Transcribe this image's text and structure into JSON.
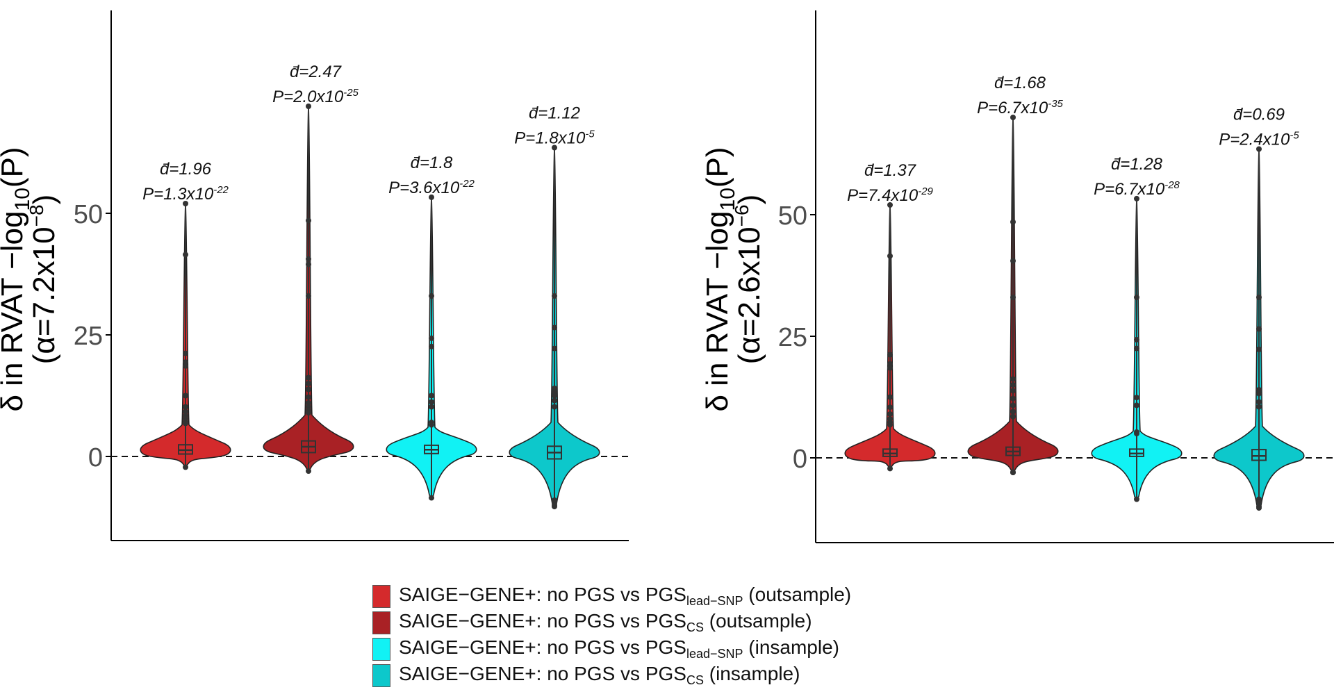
{
  "chart_data": [
    {
      "type": "violin",
      "ylabel_line1": "δ in RVAT −log",
      "ylabel_sub": "10",
      "ylabel_line1_end": "(P)",
      "ylabel_line2_open": "(α=7.2x10",
      "ylabel_line2_sup": "−8",
      "ylabel_line2_close": ")",
      "ylim": [
        -12,
        75
      ],
      "yticks": [
        0,
        25,
        50
      ],
      "reference_line": 0,
      "groups": [
        {
          "series": 0,
          "median": 1.3,
          "q1": 0.5,
          "q3": 2.4,
          "min": -2.2,
          "max": 52,
          "bulk_top": 6.5,
          "outliers": [
            41.5,
            21.2,
            19.4,
            18.6,
            12.5,
            10.2,
            9.2,
            8.4,
            7.8,
            7.2,
            6.8
          ],
          "annotation_d": "d̄=1.96",
          "annotation_p": "P=1.3x10",
          "annotation_exp": "-22"
        },
        {
          "series": 1,
          "median": 2.0,
          "q1": 0.8,
          "q3": 3.2,
          "min": -3.0,
          "max": 72,
          "bulk_top": 8.5,
          "outliers": [
            48.5,
            40.6,
            39.5,
            33,
            16.2,
            15.0,
            13.8,
            12.2,
            11.0,
            10.2,
            9.5,
            9.0
          ],
          "annotation_d": "d̄=2.47",
          "annotation_p": "P=2.0x10",
          "annotation_exp": "-25"
        },
        {
          "series": 2,
          "median": 1.4,
          "q1": 0.6,
          "q3": 2.3,
          "min": -8.5,
          "max": 53.3,
          "bulk_top": 6.0,
          "outliers": [
            33,
            24.3,
            22.6,
            12.5,
            11.2,
            10.2,
            7.0,
            6.5
          ],
          "annotation_d": "d̄=1.8",
          "annotation_p": "P=3.6x10",
          "annotation_exp": "-22"
        },
        {
          "series": 3,
          "median": 0.8,
          "q1": -0.5,
          "q3": 2.1,
          "min": -10.3,
          "max": 63.5,
          "bulk_top": 7.0,
          "outliers": [
            33,
            26.5,
            22.2,
            14.0,
            13.2,
            12.5,
            11.5,
            10.2,
            -9.0,
            -9.5,
            -10.0
          ],
          "annotation_d": "d̄=1.12",
          "annotation_p": "P=1.8x10",
          "annotation_exp": "-5"
        }
      ]
    },
    {
      "type": "violin",
      "ylabel_line1": "δ in RVAT −log",
      "ylabel_sub": "10",
      "ylabel_line1_end": "(P)",
      "ylabel_line2_open": "(α=2.6x10",
      "ylabel_line2_sup": "−6",
      "ylabel_line2_close": ")",
      "ylim": [
        -14,
        75
      ],
      "yticks": [
        0,
        25,
        50
      ],
      "reference_line": 0,
      "groups": [
        {
          "series": 0,
          "median": 0.9,
          "q1": 0.3,
          "q3": 1.8,
          "min": -2.2,
          "max": 52,
          "bulk_top": 6.0,
          "outliers": [
            41.5,
            21.2,
            19.3,
            18.5,
            12.5,
            10.4,
            9.0,
            8.0,
            7.3,
            6.8
          ],
          "annotation_d": "d̄=1.37",
          "annotation_p": "P=7.4x10",
          "annotation_exp": "-29"
        },
        {
          "series": 1,
          "median": 1.3,
          "q1": 0.5,
          "q3": 2.2,
          "min": -3.0,
          "max": 70,
          "bulk_top": 7.5,
          "outliers": [
            48.5,
            40.5,
            33,
            16.2,
            15.0,
            13.8,
            12.2,
            10.8,
            9.5,
            8.5,
            -3.0
          ],
          "annotation_d": "d̄=1.68",
          "annotation_p": "P=6.7x10",
          "annotation_exp": "-35"
        },
        {
          "series": 2,
          "median": 0.9,
          "q1": 0.3,
          "q3": 1.8,
          "min": -8.5,
          "max": 53.3,
          "bulk_top": 5.5,
          "outliers": [
            33,
            24.3,
            22.5,
            12.4,
            10.8,
            5.3,
            5.0
          ],
          "annotation_d": "d̄=1.28",
          "annotation_p": "P=6.7x10",
          "annotation_exp": "-28"
        },
        {
          "series": 3,
          "median": 0.4,
          "q1": -0.5,
          "q3": 1.7,
          "min": -10.3,
          "max": 63.5,
          "bulk_top": 6.5,
          "outliers": [
            33,
            26.5,
            22.3,
            14.0,
            13.2,
            11.5,
            10.5,
            -8.5,
            -9.0,
            -10.0
          ],
          "annotation_d": "d̄=0.69",
          "annotation_p": "P=2.4x10",
          "annotation_exp": "-5"
        }
      ]
    }
  ],
  "legend": [
    {
      "prefix": "SAIGE−GENE+: no PGS vs  PGS",
      "sub": "lead−SNP",
      "suffix": " (outsample)",
      "color": "#d42a2c"
    },
    {
      "prefix": "SAIGE−GENE+: no PGS vs  PGS",
      "sub": "CS",
      "suffix": " (outsample)",
      "color": "#a92125"
    },
    {
      "prefix": "SAIGE−GENE+: no PGS vs  PGS",
      "sub": "lead−SNP",
      "suffix": " (insample)",
      "color": "#11f2f4"
    },
    {
      "prefix": "SAIGE−GENE+: no PGS vs  PGS",
      "sub": "CS",
      "suffix": " (insample)",
      "color": "#0dc8cb"
    }
  ]
}
